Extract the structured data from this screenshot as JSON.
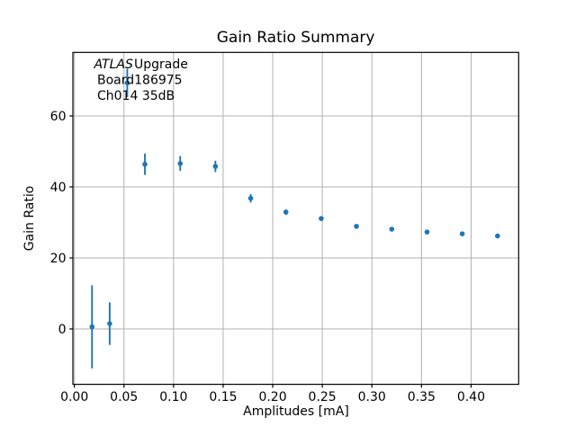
{
  "figure": {
    "background": "#ffffff"
  },
  "chart_data": {
    "type": "scatter",
    "title": "Gain Ratio Summary",
    "xlabel": "Amplitudes [mA]",
    "ylabel": "Gain Ratio",
    "annotation": {
      "line1_italic": "ATLAS",
      "line1_rest": "Upgrade",
      "line2": "Board186975",
      "line3": "Ch014 35dB"
    },
    "series": [
      {
        "name": "gain_ratio_vs_amplitude",
        "x": [
          0.0178,
          0.0356,
          0.0533,
          0.0711,
          0.1067,
          0.1422,
          0.1778,
          0.2133,
          0.2489,
          0.2844,
          0.32,
          0.3556,
          0.3911,
          0.4267
        ],
        "y": [
          0.6,
          1.5,
          69.3,
          46.4,
          46.6,
          45.8,
          36.8,
          32.9,
          31.1,
          28.9,
          28.1,
          27.3,
          26.8,
          26.2
        ],
        "yerr": [
          11.7,
          6.0,
          4.0,
          3.0,
          2.1,
          1.6,
          1.2,
          0.8,
          0.6,
          0.5,
          0.5,
          0.4,
          0.4,
          0.4
        ]
      }
    ],
    "xlim": [
      -0.0015,
      0.448
    ],
    "ylim": [
      -15.6,
      77.9
    ],
    "xticks": {
      "values": [
        0.0,
        0.05,
        0.1,
        0.15,
        0.2,
        0.25,
        0.3,
        0.35,
        0.4
      ],
      "labels": [
        "0.00",
        "0.05",
        "0.10",
        "0.15",
        "0.20",
        "0.25",
        "0.30",
        "0.35",
        "0.40"
      ]
    },
    "yticks": {
      "values": [
        0,
        20,
        40,
        60
      ],
      "labels": [
        "0",
        "20",
        "40",
        "60"
      ]
    },
    "grid": true,
    "legend_position": "none",
    "colors": {
      "marker": "#1f77b4",
      "grid": "#b0b0b0",
      "spine": "#000000",
      "text": "#000000",
      "background": "#ffffff"
    }
  }
}
